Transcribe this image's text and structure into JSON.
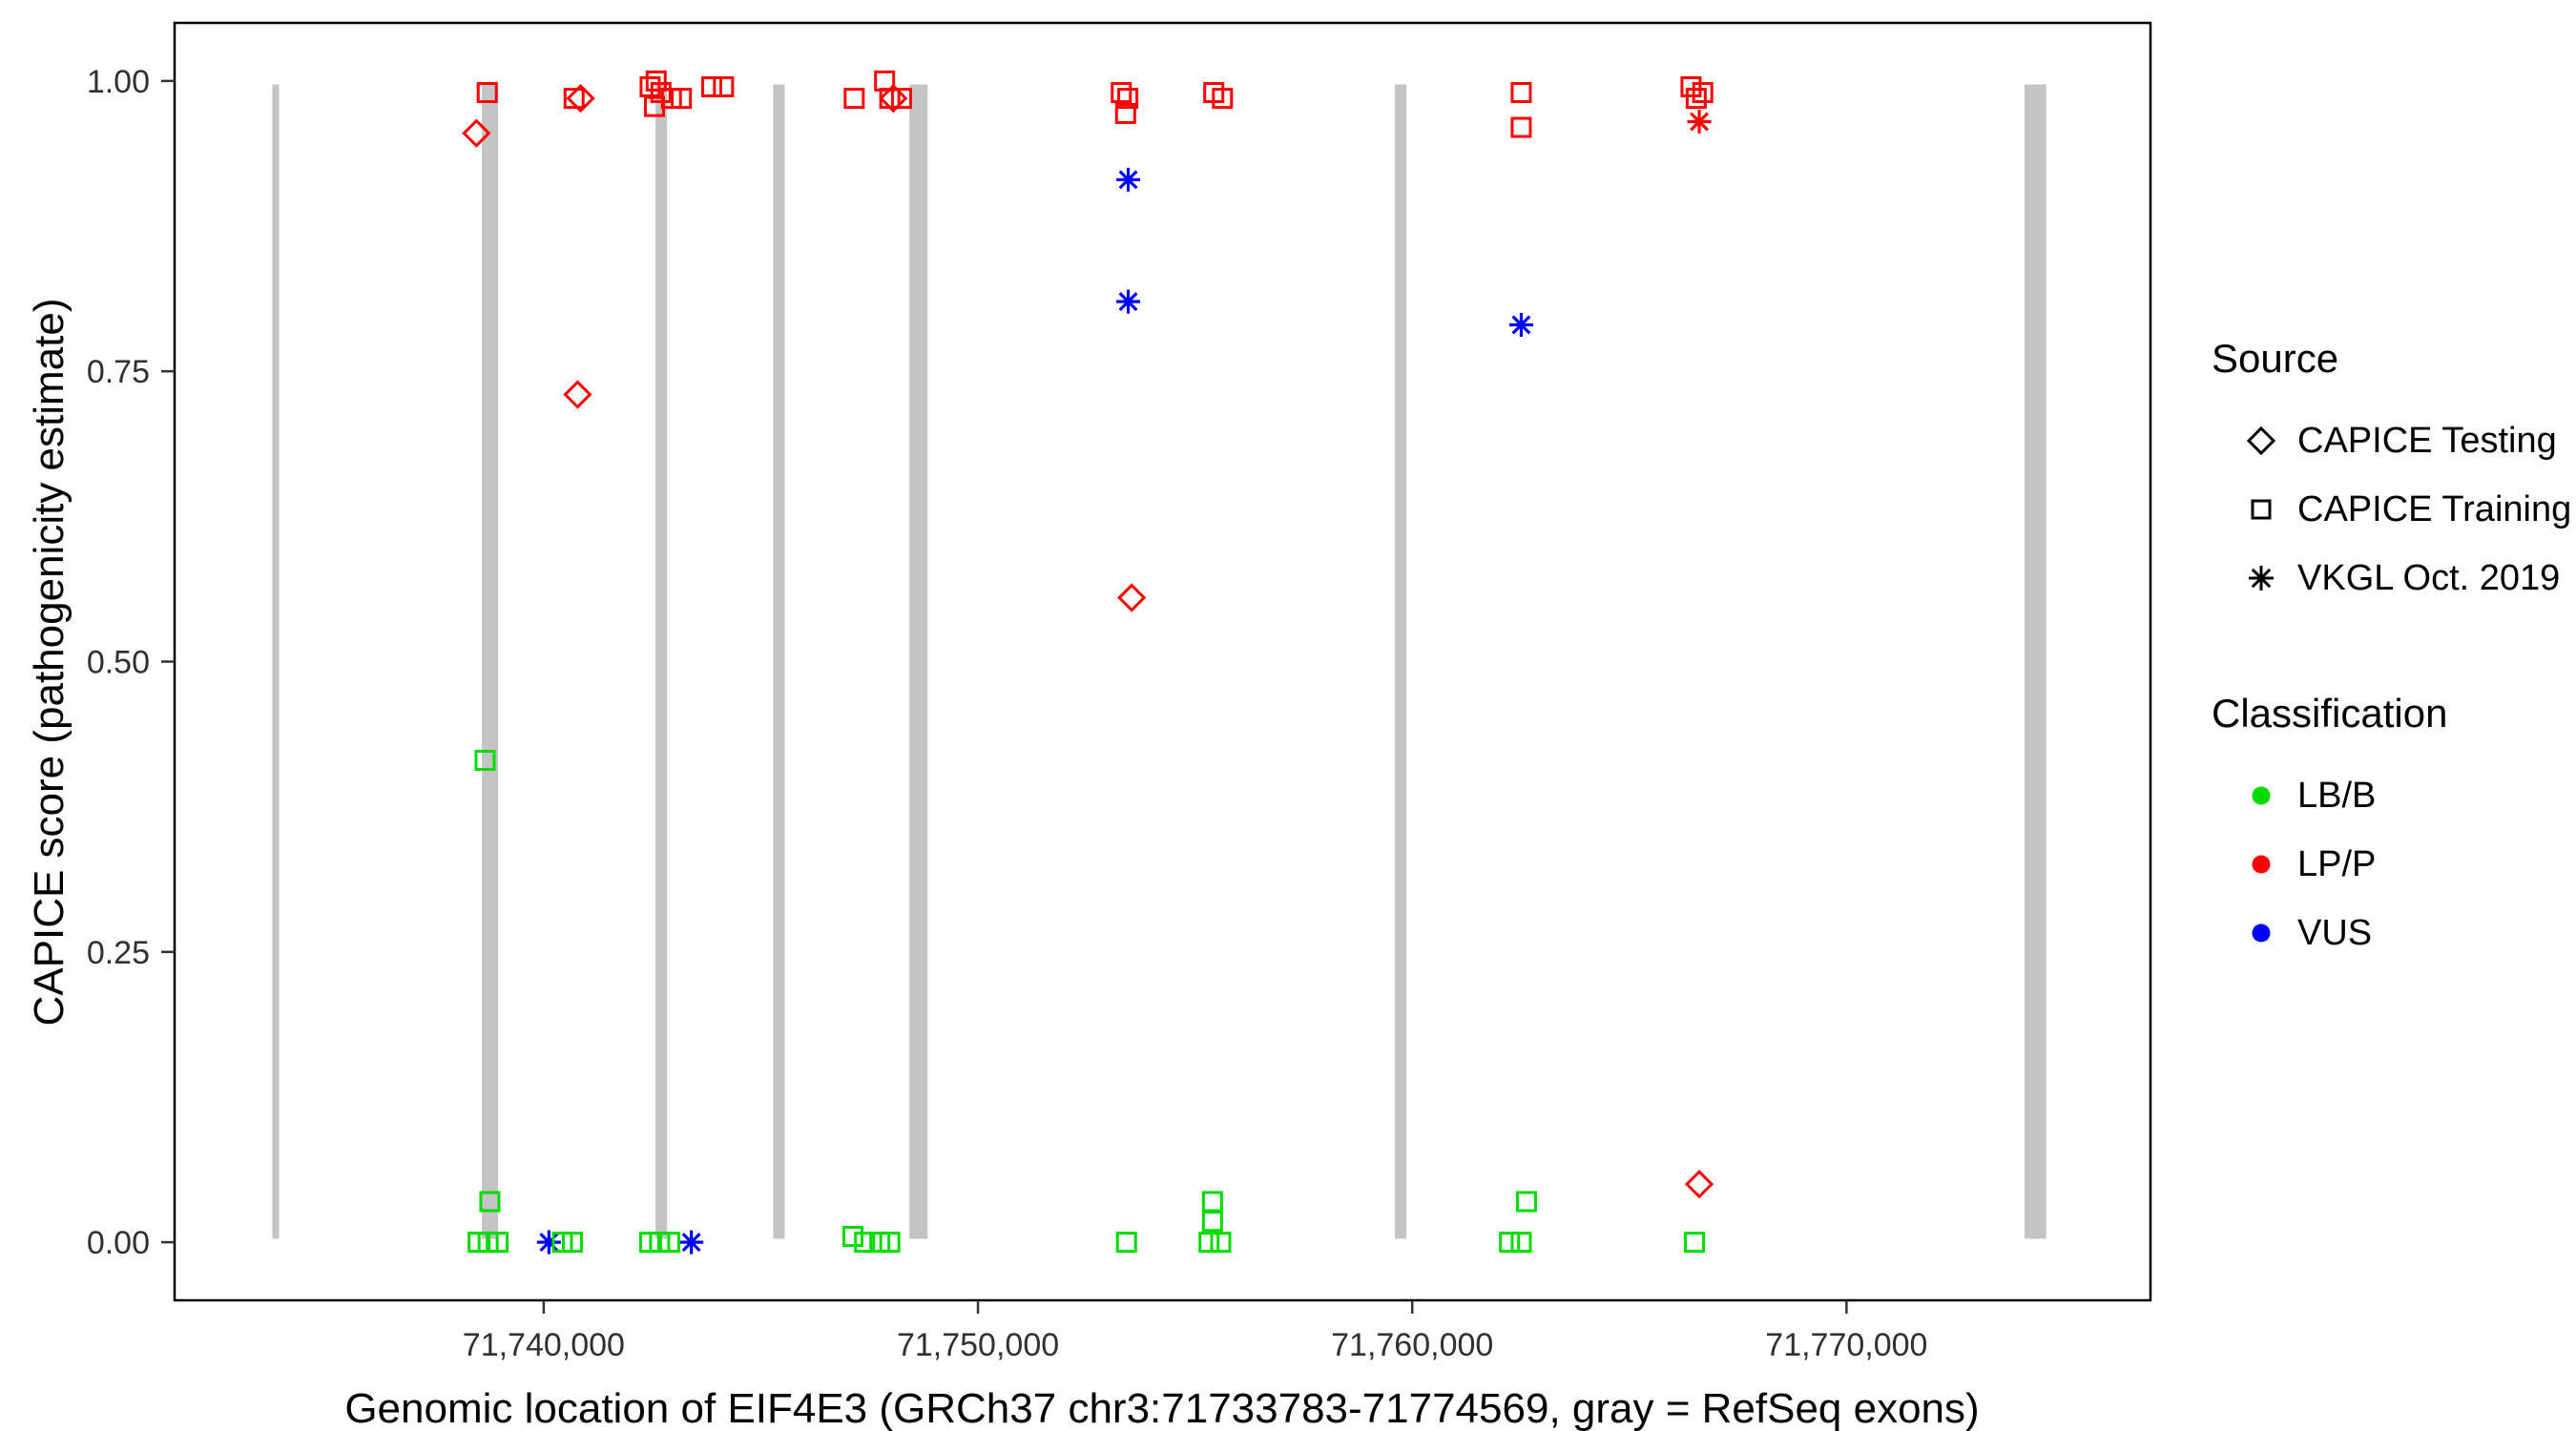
{
  "chart_data": {
    "type": "scatter",
    "title": "",
    "xlabel": "Genomic location of EIF4E3 (GRCh37 chr3:71733783-71774569, gray = RefSeq exons)",
    "ylabel": "CAPICE score (pathogenicity estimate)",
    "x_domain": [
      71731500,
      71777000
    ],
    "y_domain": [
      -0.05,
      1.05
    ],
    "grid": false,
    "legend_position": "right",
    "x_ticks": [
      {
        "value": 71740000,
        "label": "71,740,000"
      },
      {
        "value": 71750000,
        "label": "71,750,000"
      },
      {
        "value": 71760000,
        "label": "71,760,000"
      },
      {
        "value": 71770000,
        "label": "71,770,000"
      }
    ],
    "y_ticks": [
      {
        "value": 0.0,
        "label": "0.00"
      },
      {
        "value": 0.25,
        "label": "0.25"
      },
      {
        "value": 0.5,
        "label": "0.50"
      },
      {
        "value": 0.75,
        "label": "0.75"
      },
      {
        "value": 1.0,
        "label": "1.00"
      }
    ],
    "colors": {
      "LB/B": "#00DB00",
      "LP/P": "#FF0000",
      "VUS": "#0000FF",
      "exon": "#C4C4C4"
    },
    "exons": [
      {
        "start": 71733750,
        "end": 71733905
      },
      {
        "start": 71738575,
        "end": 71738950
      },
      {
        "start": 71742575,
        "end": 71742840
      },
      {
        "start": 71745285,
        "end": 71745550
      },
      {
        "start": 71748420,
        "end": 71748840
      },
      {
        "start": 71759600,
        "end": 71759865
      },
      {
        "start": 71774100,
        "end": 71774600
      }
    ],
    "points": [
      {
        "x": 71738700,
        "y": 0.99,
        "shape": "square",
        "class": "LP/P"
      },
      {
        "x": 71740700,
        "y": 0.985,
        "shape": "square",
        "class": "LP/P"
      },
      {
        "x": 71742450,
        "y": 0.995,
        "shape": "square",
        "class": "LP/P"
      },
      {
        "x": 71742590,
        "y": 1.0,
        "shape": "square",
        "class": "LP/P"
      },
      {
        "x": 71742700,
        "y": 0.99,
        "shape": "square",
        "class": "LP/P"
      },
      {
        "x": 71742550,
        "y": 0.978,
        "shape": "square",
        "class": "LP/P"
      },
      {
        "x": 71742940,
        "y": 0.985,
        "shape": "square",
        "class": "LP/P"
      },
      {
        "x": 71743170,
        "y": 0.985,
        "shape": "square",
        "class": "LP/P"
      },
      {
        "x": 71743870,
        "y": 0.995,
        "shape": "square",
        "class": "LP/P"
      },
      {
        "x": 71744140,
        "y": 0.995,
        "shape": "square",
        "class": "LP/P"
      },
      {
        "x": 71747150,
        "y": 0.985,
        "shape": "square",
        "class": "LP/P"
      },
      {
        "x": 71747850,
        "y": 1.0,
        "shape": "square",
        "class": "LP/P"
      },
      {
        "x": 71747970,
        "y": 0.985,
        "shape": "square",
        "class": "LP/P"
      },
      {
        "x": 71748240,
        "y": 0.985,
        "shape": "square",
        "class": "LP/P"
      },
      {
        "x": 71753300,
        "y": 0.99,
        "shape": "square",
        "class": "LP/P"
      },
      {
        "x": 71753450,
        "y": 0.985,
        "shape": "square",
        "class": "LP/P"
      },
      {
        "x": 71753400,
        "y": 0.972,
        "shape": "square",
        "class": "LP/P"
      },
      {
        "x": 71755430,
        "y": 0.99,
        "shape": "square",
        "class": "LP/P"
      },
      {
        "x": 71755630,
        "y": 0.985,
        "shape": "square",
        "class": "LP/P"
      },
      {
        "x": 71762510,
        "y": 0.99,
        "shape": "square",
        "class": "LP/P"
      },
      {
        "x": 71762510,
        "y": 0.96,
        "shape": "square",
        "class": "LP/P"
      },
      {
        "x": 71766420,
        "y": 0.995,
        "shape": "square",
        "class": "LP/P"
      },
      {
        "x": 71766690,
        "y": 0.99,
        "shape": "square",
        "class": "LP/P"
      },
      {
        "x": 71766540,
        "y": 0.985,
        "shape": "square",
        "class": "LP/P"
      },
      {
        "x": 71738450,
        "y": 0.955,
        "shape": "diamond",
        "class": "LP/P"
      },
      {
        "x": 71740850,
        "y": 0.985,
        "shape": "diamond",
        "class": "LP/P"
      },
      {
        "x": 71740780,
        "y": 0.73,
        "shape": "diamond",
        "class": "LP/P"
      },
      {
        "x": 71748050,
        "y": 0.985,
        "shape": "diamond",
        "class": "LP/P"
      },
      {
        "x": 71753540,
        "y": 0.555,
        "shape": "diamond",
        "class": "LP/P"
      },
      {
        "x": 71766610,
        "y": 0.05,
        "shape": "diamond",
        "class": "LP/P"
      },
      {
        "x": 71766610,
        "y": 0.965,
        "shape": "asterisk",
        "class": "LP/P"
      },
      {
        "x": 71753460,
        "y": 0.915,
        "shape": "asterisk",
        "class": "VUS"
      },
      {
        "x": 71753460,
        "y": 0.81,
        "shape": "asterisk",
        "class": "VUS"
      },
      {
        "x": 71762510,
        "y": 0.79,
        "shape": "asterisk",
        "class": "VUS"
      },
      {
        "x": 71740120,
        "y": 0.0,
        "shape": "asterisk",
        "class": "VUS"
      },
      {
        "x": 71743400,
        "y": 0.0,
        "shape": "asterisk",
        "class": "VUS"
      },
      {
        "x": 71738650,
        "y": 0.415,
        "shape": "square",
        "class": "LB/B"
      },
      {
        "x": 71738760,
        "y": 0.035,
        "shape": "square",
        "class": "LB/B"
      },
      {
        "x": 71738490,
        "y": 0.0,
        "shape": "square",
        "class": "LB/B"
      },
      {
        "x": 71738720,
        "y": 0.0,
        "shape": "square",
        "class": "LB/B"
      },
      {
        "x": 71738950,
        "y": 0.0,
        "shape": "square",
        "class": "LB/B"
      },
      {
        "x": 71740430,
        "y": 0.0,
        "shape": "square",
        "class": "LB/B"
      },
      {
        "x": 71740660,
        "y": 0.0,
        "shape": "square",
        "class": "LB/B"
      },
      {
        "x": 71742440,
        "y": 0.0,
        "shape": "square",
        "class": "LB/B"
      },
      {
        "x": 71742670,
        "y": 0.0,
        "shape": "square",
        "class": "LB/B"
      },
      {
        "x": 71742900,
        "y": 0.0,
        "shape": "square",
        "class": "LB/B"
      },
      {
        "x": 71747120,
        "y": 0.005,
        "shape": "square",
        "class": "LB/B"
      },
      {
        "x": 71747390,
        "y": 0.0,
        "shape": "square",
        "class": "LB/B"
      },
      {
        "x": 71747740,
        "y": 0.0,
        "shape": "square",
        "class": "LB/B"
      },
      {
        "x": 71747970,
        "y": 0.0,
        "shape": "square",
        "class": "LB/B"
      },
      {
        "x": 71753420,
        "y": 0.0,
        "shape": "square",
        "class": "LB/B"
      },
      {
        "x": 71755400,
        "y": 0.035,
        "shape": "square",
        "class": "LB/B"
      },
      {
        "x": 71755400,
        "y": 0.018,
        "shape": "square",
        "class": "LB/B"
      },
      {
        "x": 71755320,
        "y": 0.0,
        "shape": "square",
        "class": "LB/B"
      },
      {
        "x": 71755590,
        "y": 0.0,
        "shape": "square",
        "class": "LB/B"
      },
      {
        "x": 71762240,
        "y": 0.0,
        "shape": "square",
        "class": "LB/B"
      },
      {
        "x": 71762510,
        "y": 0.0,
        "shape": "square",
        "class": "LB/B"
      },
      {
        "x": 71762630,
        "y": 0.035,
        "shape": "square",
        "class": "LB/B"
      },
      {
        "x": 71766500,
        "y": 0.0,
        "shape": "square",
        "class": "LB/B"
      }
    ]
  },
  "legend": {
    "source": {
      "title": "Source",
      "items": [
        {
          "shape": "diamond",
          "label": "CAPICE Testing"
        },
        {
          "shape": "square",
          "label": "CAPICE Training"
        },
        {
          "shape": "asterisk",
          "label": "VKGL Oct. 2019"
        }
      ]
    },
    "classification": {
      "title": "Classification",
      "items": [
        {
          "color": "#00DB00",
          "label": "LB/B"
        },
        {
          "color": "#FF0000",
          "label": "LP/P"
        },
        {
          "color": "#0000FF",
          "label": "VUS"
        }
      ]
    }
  }
}
